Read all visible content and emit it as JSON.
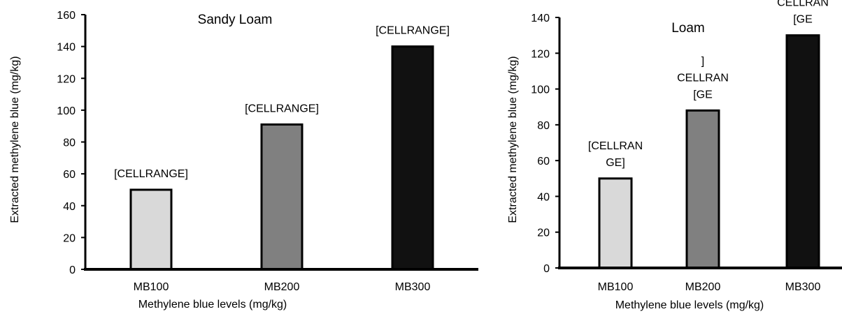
{
  "chart_data": [
    {
      "type": "bar",
      "title": "Sandy Loam",
      "xlabel": "Methylene blue levels (mg/kg)",
      "ylabel": "Extracted methylene blue (mg/kg)",
      "categories": [
        "MB100",
        "MB200",
        "MB300"
      ],
      "values": [
        50,
        91,
        140
      ],
      "data_labels": [
        [
          "[CELLRANGE]"
        ],
        [
          "[CELLRANGE]"
        ],
        [
          "[CELLRANGE]"
        ]
      ],
      "yticks": [
        "0",
        "20",
        "40",
        "60",
        "80",
        "100",
        "120",
        "140",
        "160"
      ],
      "ylim": [
        0,
        160
      ],
      "bar_colors": [
        "#d9d9d9",
        "#808080",
        "#111111"
      ],
      "grid": false,
      "legend": "none"
    },
    {
      "type": "bar",
      "title": "Loam",
      "xlabel": "Methylene blue levels (mg/kg)",
      "ylabel": "Extracted methylene blue (mg/kg)",
      "categories": [
        "MB100",
        "MB200",
        "MB300"
      ],
      "values": [
        50,
        88,
        130
      ],
      "data_labels": [
        [
          "[CELLRAN",
          "GE]"
        ],
        [
          "]",
          "CELLRAN",
          "[GE"
        ],
        [
          "]",
          "CELLRAN",
          "[GE"
        ]
      ],
      "yticks": [
        "0",
        "20",
        "40",
        "60",
        "80",
        "100",
        "120",
        "140"
      ],
      "ylim": [
        0,
        140
      ],
      "bar_colors": [
        "#d9d9d9",
        "#808080",
        "#111111"
      ],
      "grid": false,
      "legend": "none"
    }
  ]
}
